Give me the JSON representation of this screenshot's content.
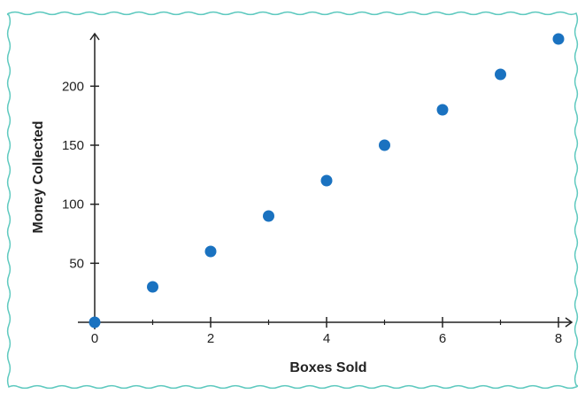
{
  "colors": {
    "border": "#5ec9bf",
    "axis": "#222222",
    "point": "#1a72c0"
  },
  "chart_data": {
    "type": "scatter",
    "title": "",
    "xlabel": "Boxes Sold",
    "ylabel": "Money Collected",
    "xlim": [
      0,
      8
    ],
    "ylim": [
      0,
      240
    ],
    "x_tick_labels": [
      "0",
      "2",
      "4",
      "6",
      "8"
    ],
    "y_tick_labels": [
      "50",
      "100",
      "150",
      "200"
    ],
    "x_tick_values": [
      0,
      2,
      4,
      6,
      8
    ],
    "y_tick_values": [
      50,
      100,
      150,
      200
    ],
    "x_minor_ticks": [
      1,
      3,
      5,
      7
    ],
    "grid": false,
    "series": [
      {
        "points": [
          {
            "x": 0,
            "y": 0
          },
          {
            "x": 1,
            "y": 30
          },
          {
            "x": 2,
            "y": 60
          },
          {
            "x": 3,
            "y": 90
          },
          {
            "x": 4,
            "y": 120
          },
          {
            "x": 5,
            "y": 150
          },
          {
            "x": 6,
            "y": 180
          },
          {
            "x": 7,
            "y": 210
          },
          {
            "x": 8,
            "y": 240
          }
        ]
      }
    ]
  }
}
